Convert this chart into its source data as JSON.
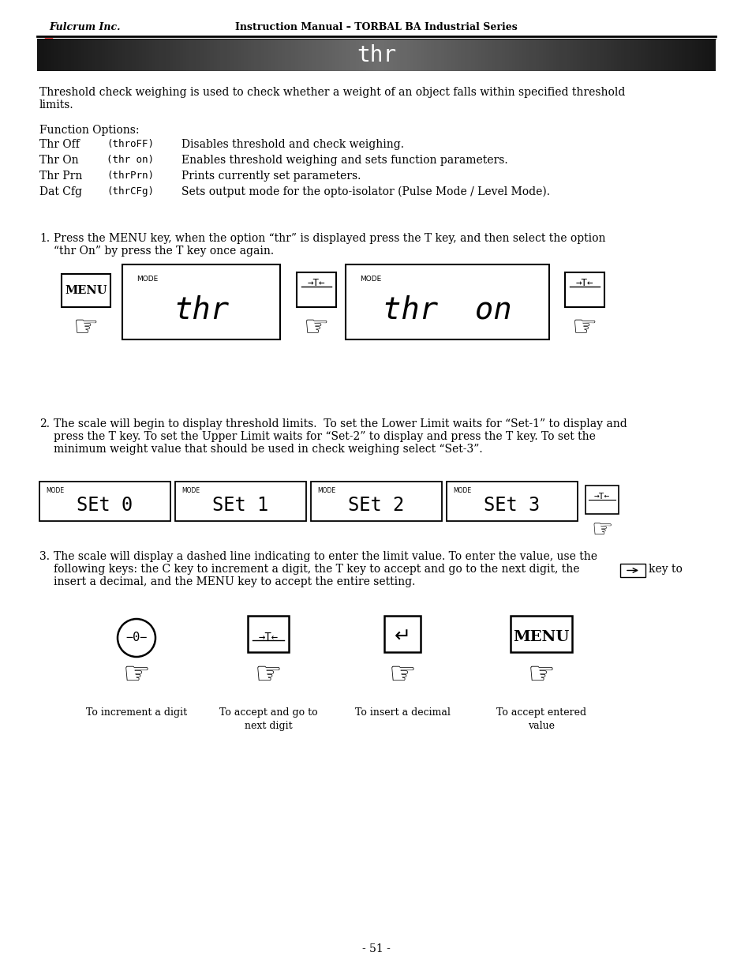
{
  "page_title": "thr",
  "header_left": "Fulcrum Inc.",
  "header_center": "Instruction Manual – TORBAL BA Industrial Series",
  "intro_text1": "Threshold check weighing is used to check whether a weight of an object falls within specified threshold",
  "intro_text2": "limits.",
  "function_options_title": "Function Options:",
  "function_options": [
    [
      "Thr Off",
      "(thrоFF)",
      "Disables threshold and check weighing."
    ],
    [
      "Thr On",
      "(thr on)",
      "Enables threshold weighing and sets function parameters."
    ],
    [
      "Thr Prn",
      "(thrPrn)",
      "Prints currently set parameters."
    ],
    [
      "Dat Cfg",
      "(thrCFg)",
      "Sets output mode for the opto-isolator (Pulse Mode / Level Mode)."
    ]
  ],
  "step1_text1": "Press the MENU key, when the option “thr” is displayed press the T key, and then select the option",
  "step1_text2": "“thr On” by press the T key once again.",
  "step2_text1": "The scale will begin to display threshold limits.  To set the Lower Limit waits for “Set-1” to display and",
  "step2_text2": "press the T key. To set the Upper Limit waits for “Set-2” to display and press the T key. To set the",
  "step2_text3": "minimum weight value that should be used in check weighing select “Set-3”.",
  "step2_displays": [
    "SEt 0",
    "SEt 1",
    "SEt 2",
    "SEt 3"
  ],
  "step3_text1": "The scale will display a dashed line indicating to enter the limit value. To enter the value, use the",
  "step3_text2": "following keys: the C key to increment a digit, the T key to accept and go to the next digit, the",
  "step3_text3": "key to",
  "step3_text4": "insert a decimal, and the MENU key to accept the entire setting.",
  "step3_labels": [
    "To increment a digit",
    "To accept and go to\nnext digit",
    "To insert a decimal",
    "To accept entered\nvalue"
  ],
  "page_number": "- 51 -",
  "bg_color": "#ffffff",
  "text_color": "#000000"
}
